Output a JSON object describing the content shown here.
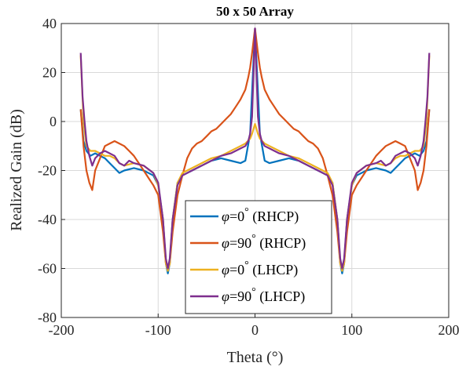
{
  "chart_data": {
    "type": "line",
    "title": "50 x 50 Array",
    "xlabel": "Theta (°)",
    "ylabel": "Realized Gain (dB)",
    "xlim": [
      -200,
      200
    ],
    "ylim": [
      -80,
      40
    ],
    "xticks": [
      -200,
      -100,
      0,
      100,
      200
    ],
    "yticks": [
      40,
      20,
      0,
      -20,
      -40,
      -60,
      -80
    ],
    "grid": true,
    "legend_position": "bottom-center",
    "series": [
      {
        "name": "φ=0° (RHCP)",
        "legend": {
          "symbol": "φ",
          "value": "=0",
          "degree": "°",
          "pol": "(RHCP)"
        },
        "color": "#0072BD",
        "points": [
          [
            -180,
            5
          ],
          [
            -177,
            -8
          ],
          [
            -174,
            -12
          ],
          [
            -170,
            -14
          ],
          [
            -165,
            -13
          ],
          [
            -160,
            -14
          ],
          [
            -155,
            -15
          ],
          [
            -150,
            -17
          ],
          [
            -145,
            -19
          ],
          [
            -140,
            -21
          ],
          [
            -135,
            -20
          ],
          [
            -125,
            -19
          ],
          [
            -115,
            -20
          ],
          [
            -105,
            -22
          ],
          [
            -100,
            -26
          ],
          [
            -95,
            -40
          ],
          [
            -92,
            -58
          ],
          [
            -90,
            -62
          ],
          [
            -88,
            -58
          ],
          [
            -85,
            -40
          ],
          [
            -80,
            -25
          ],
          [
            -75,
            -22
          ],
          [
            -65,
            -20
          ],
          [
            -55,
            -18
          ],
          [
            -45,
            -16
          ],
          [
            -35,
            -15
          ],
          [
            -25,
            -16
          ],
          [
            -15,
            -17
          ],
          [
            -10,
            -16
          ],
          [
            -5,
            -5
          ],
          [
            0,
            38
          ],
          [
            5,
            -5
          ],
          [
            10,
            -16
          ],
          [
            15,
            -17
          ],
          [
            25,
            -16
          ],
          [
            35,
            -15
          ],
          [
            45,
            -16
          ],
          [
            55,
            -18
          ],
          [
            65,
            -20
          ],
          [
            75,
            -22
          ],
          [
            80,
            -25
          ],
          [
            85,
            -40
          ],
          [
            88,
            -58
          ],
          [
            90,
            -62
          ],
          [
            92,
            -58
          ],
          [
            95,
            -40
          ],
          [
            100,
            -26
          ],
          [
            105,
            -22
          ],
          [
            115,
            -20
          ],
          [
            125,
            -19
          ],
          [
            135,
            -20
          ],
          [
            140,
            -21
          ],
          [
            145,
            -19
          ],
          [
            150,
            -17
          ],
          [
            155,
            -15
          ],
          [
            160,
            -14
          ],
          [
            165,
            -13
          ],
          [
            170,
            -14
          ],
          [
            174,
            -12
          ],
          [
            177,
            -8
          ],
          [
            180,
            5
          ]
        ]
      },
      {
        "name": "φ=90° (RHCP)",
        "legend": {
          "symbol": "φ",
          "value": "=90",
          "degree": "°",
          "pol": "(RHCP)"
        },
        "color": "#D95319",
        "points": [
          [
            -180,
            5
          ],
          [
            -177,
            -10
          ],
          [
            -174,
            -20
          ],
          [
            -171,
            -25
          ],
          [
            -168,
            -28
          ],
          [
            -165,
            -20
          ],
          [
            -160,
            -15
          ],
          [
            -155,
            -10
          ],
          [
            -150,
            -9
          ],
          [
            -145,
            -8
          ],
          [
            -140,
            -9
          ],
          [
            -135,
            -10
          ],
          [
            -130,
            -12
          ],
          [
            -125,
            -14
          ],
          [
            -120,
            -17
          ],
          [
            -115,
            -20
          ],
          [
            -110,
            -23
          ],
          [
            -105,
            -26
          ],
          [
            -100,
            -30
          ],
          [
            -95,
            -45
          ],
          [
            -92,
            -58
          ],
          [
            -90,
            -60
          ],
          [
            -88,
            -58
          ],
          [
            -85,
            -45
          ],
          [
            -80,
            -30
          ],
          [
            -75,
            -22
          ],
          [
            -70,
            -15
          ],
          [
            -65,
            -11
          ],
          [
            -60,
            -9
          ],
          [
            -55,
            -8
          ],
          [
            -50,
            -6
          ],
          [
            -45,
            -4
          ],
          [
            -40,
            -3
          ],
          [
            -35,
            -1
          ],
          [
            -30,
            1
          ],
          [
            -25,
            3
          ],
          [
            -20,
            6
          ],
          [
            -15,
            9
          ],
          [
            -10,
            13
          ],
          [
            -7,
            18
          ],
          [
            -5,
            22
          ],
          [
            -3,
            28
          ],
          [
            0,
            38
          ],
          [
            3,
            28
          ],
          [
            5,
            22
          ],
          [
            7,
            18
          ],
          [
            10,
            13
          ],
          [
            15,
            9
          ],
          [
            20,
            6
          ],
          [
            25,
            3
          ],
          [
            30,
            1
          ],
          [
            35,
            -1
          ],
          [
            40,
            -3
          ],
          [
            45,
            -4
          ],
          [
            50,
            -6
          ],
          [
            55,
            -8
          ],
          [
            60,
            -9
          ],
          [
            65,
            -11
          ],
          [
            70,
            -15
          ],
          [
            75,
            -22
          ],
          [
            80,
            -30
          ],
          [
            85,
            -45
          ],
          [
            88,
            -58
          ],
          [
            90,
            -60
          ],
          [
            92,
            -58
          ],
          [
            95,
            -45
          ],
          [
            100,
            -30
          ],
          [
            105,
            -26
          ],
          [
            110,
            -23
          ],
          [
            115,
            -20
          ],
          [
            120,
            -17
          ],
          [
            125,
            -14
          ],
          [
            130,
            -12
          ],
          [
            135,
            -10
          ],
          [
            140,
            -9
          ],
          [
            145,
            -8
          ],
          [
            150,
            -9
          ],
          [
            155,
            -10
          ],
          [
            160,
            -15
          ],
          [
            165,
            -20
          ],
          [
            168,
            -28
          ],
          [
            171,
            -25
          ],
          [
            174,
            -20
          ],
          [
            177,
            -10
          ],
          [
            180,
            5
          ]
        ]
      },
      {
        "name": "φ=0° (LHCP)",
        "legend": {
          "symbol": "φ",
          "value": "=0",
          "degree": "°",
          "pol": "(LHCP)"
        },
        "color": "#EDB120",
        "points": [
          [
            -180,
            27
          ],
          [
            -177,
            0
          ],
          [
            -174,
            -10
          ],
          [
            -170,
            -12
          ],
          [
            -165,
            -12
          ],
          [
            -160,
            -13
          ],
          [
            -155,
            -14
          ],
          [
            -150,
            -14
          ],
          [
            -145,
            -15
          ],
          [
            -140,
            -17
          ],
          [
            -135,
            -18
          ],
          [
            -125,
            -17
          ],
          [
            -115,
            -18
          ],
          [
            -105,
            -21
          ],
          [
            -100,
            -26
          ],
          [
            -95,
            -40
          ],
          [
            -92,
            -58
          ],
          [
            -90,
            -61
          ],
          [
            -88,
            -58
          ],
          [
            -85,
            -40
          ],
          [
            -80,
            -25
          ],
          [
            -75,
            -21
          ],
          [
            -65,
            -19
          ],
          [
            -55,
            -17
          ],
          [
            -45,
            -15
          ],
          [
            -35,
            -14
          ],
          [
            -25,
            -12
          ],
          [
            -15,
            -10
          ],
          [
            -10,
            -9
          ],
          [
            -5,
            -7
          ],
          [
            -3,
            -5
          ],
          [
            0,
            -1
          ],
          [
            3,
            -5
          ],
          [
            5,
            -7
          ],
          [
            10,
            -9
          ],
          [
            15,
            -10
          ],
          [
            25,
            -12
          ],
          [
            35,
            -14
          ],
          [
            45,
            -15
          ],
          [
            55,
            -17
          ],
          [
            65,
            -19
          ],
          [
            75,
            -21
          ],
          [
            80,
            -25
          ],
          [
            85,
            -40
          ],
          [
            88,
            -58
          ],
          [
            90,
            -61
          ],
          [
            92,
            -58
          ],
          [
            95,
            -40
          ],
          [
            100,
            -26
          ],
          [
            105,
            -21
          ],
          [
            115,
            -18
          ],
          [
            125,
            -17
          ],
          [
            135,
            -18
          ],
          [
            140,
            -17
          ],
          [
            145,
            -15
          ],
          [
            150,
            -14
          ],
          [
            155,
            -14
          ],
          [
            160,
            -13
          ],
          [
            165,
            -12
          ],
          [
            170,
            -12
          ],
          [
            174,
            -10
          ],
          [
            177,
            0
          ],
          [
            180,
            27
          ]
        ]
      },
      {
        "name": "φ=90° (LHCP)",
        "legend": {
          "symbol": "φ",
          "value": "=90",
          "degree": "°",
          "pol": "(LHCP)"
        },
        "color": "#7E2F8E",
        "points": [
          [
            -180,
            28
          ],
          [
            -178,
            10
          ],
          [
            -176,
            0
          ],
          [
            -174,
            -8
          ],
          [
            -171,
            -14
          ],
          [
            -168,
            -18
          ],
          [
            -165,
            -15
          ],
          [
            -160,
            -13
          ],
          [
            -155,
            -12
          ],
          [
            -150,
            -13
          ],
          [
            -145,
            -14
          ],
          [
            -140,
            -17
          ],
          [
            -135,
            -18
          ],
          [
            -130,
            -16
          ],
          [
            -125,
            -17
          ],
          [
            -115,
            -18
          ],
          [
            -105,
            -21
          ],
          [
            -100,
            -25
          ],
          [
            -95,
            -40
          ],
          [
            -92,
            -56
          ],
          [
            -90,
            -60
          ],
          [
            -88,
            -56
          ],
          [
            -85,
            -40
          ],
          [
            -80,
            -26
          ],
          [
            -75,
            -22
          ],
          [
            -65,
            -20
          ],
          [
            -55,
            -18
          ],
          [
            -45,
            -16
          ],
          [
            -35,
            -14
          ],
          [
            -25,
            -13
          ],
          [
            -15,
            -11
          ],
          [
            -10,
            -10
          ],
          [
            -7,
            -8
          ],
          [
            -5,
            -5
          ],
          [
            -3,
            2
          ],
          [
            0,
            38
          ],
          [
            3,
            2
          ],
          [
            5,
            -5
          ],
          [
            7,
            -8
          ],
          [
            10,
            -10
          ],
          [
            15,
            -11
          ],
          [
            25,
            -13
          ],
          [
            35,
            -14
          ],
          [
            45,
            -16
          ],
          [
            55,
            -18
          ],
          [
            65,
            -20
          ],
          [
            75,
            -22
          ],
          [
            80,
            -26
          ],
          [
            85,
            -40
          ],
          [
            88,
            -56
          ],
          [
            90,
            -60
          ],
          [
            92,
            -56
          ],
          [
            95,
            -40
          ],
          [
            100,
            -25
          ],
          [
            105,
            -21
          ],
          [
            115,
            -18
          ],
          [
            125,
            -17
          ],
          [
            130,
            -16
          ],
          [
            135,
            -18
          ],
          [
            140,
            -17
          ],
          [
            145,
            -14
          ],
          [
            150,
            -13
          ],
          [
            155,
            -12
          ],
          [
            160,
            -13
          ],
          [
            165,
            -15
          ],
          [
            168,
            -18
          ],
          [
            171,
            -14
          ],
          [
            174,
            -8
          ],
          [
            176,
            0
          ],
          [
            178,
            10
          ],
          [
            180,
            28
          ]
        ]
      }
    ]
  }
}
